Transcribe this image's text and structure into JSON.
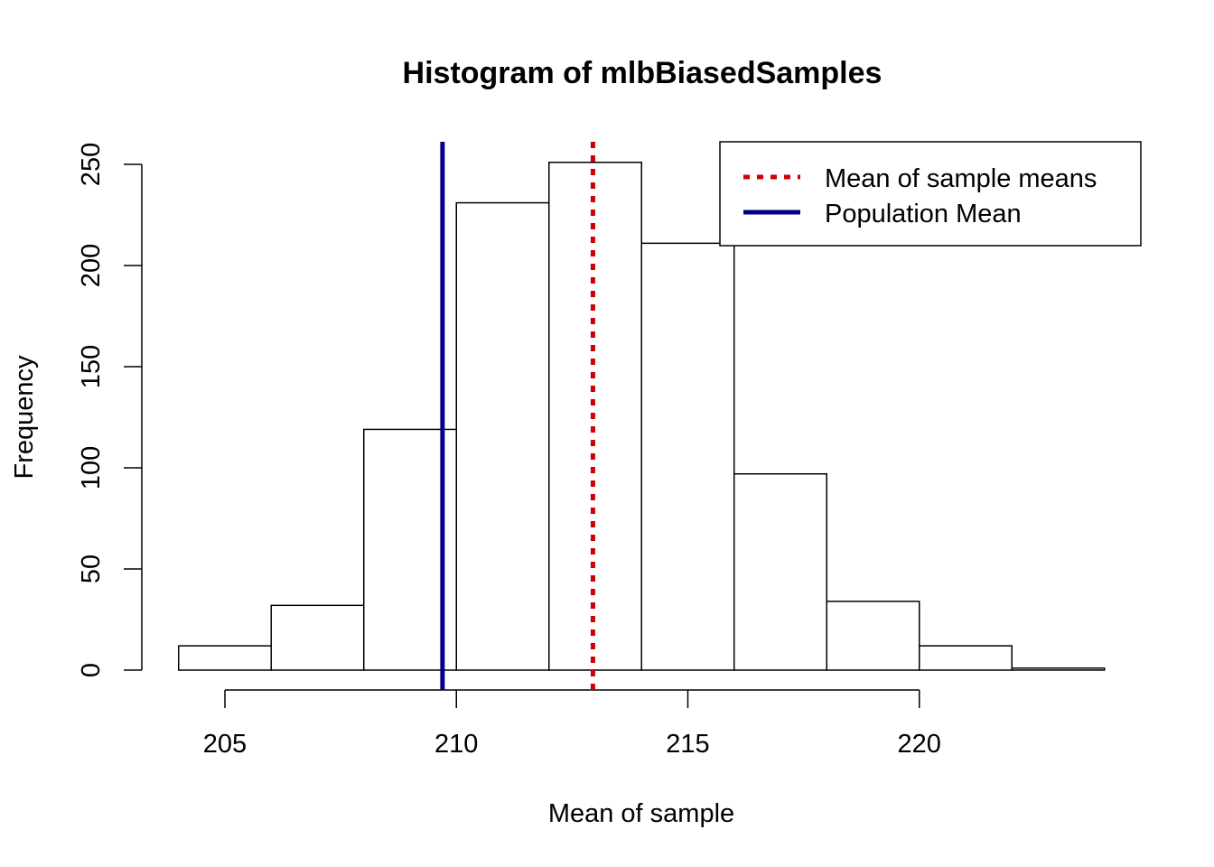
{
  "chart_data": {
    "type": "bar",
    "title": "Histogram of mlbBiasedSamples",
    "xlabel": "Mean of sample",
    "ylabel": "Frequency",
    "bin_edges": [
      204,
      206,
      208,
      210,
      212,
      214,
      216,
      218,
      220,
      222,
      224
    ],
    "values": [
      12,
      32,
      119,
      231,
      251,
      211,
      97,
      34,
      12,
      1
    ],
    "xlim": [
      204,
      224
    ],
    "ylim": [
      0,
      260
    ],
    "x_ticks": [
      205,
      210,
      215,
      220
    ],
    "x_tick_labels": [
      "205",
      "210",
      "215",
      "220"
    ],
    "y_ticks": [
      0,
      50,
      100,
      150,
      200,
      250
    ],
    "y_tick_labels": [
      "0",
      "50",
      "100",
      "150",
      "200",
      "250"
    ],
    "vlines": [
      {
        "name": "Mean of sample means",
        "x": 212.95,
        "color": "#cc0000",
        "style": "dotted"
      },
      {
        "name": "Population Mean",
        "x": 209.7,
        "color": "#00008b",
        "style": "solid"
      }
    ],
    "legend": {
      "placement": "top-right",
      "entries": [
        "Mean of sample means",
        "Population Mean"
      ]
    },
    "grid": false
  }
}
